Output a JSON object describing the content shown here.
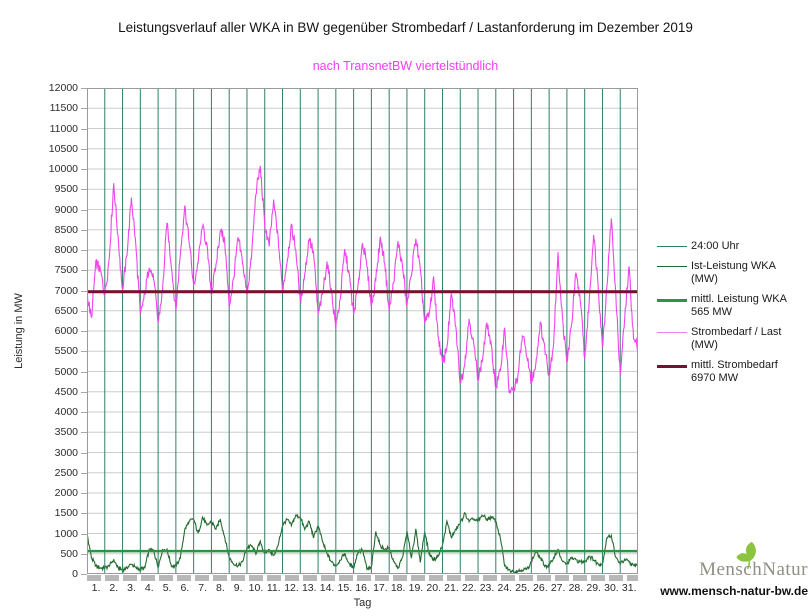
{
  "page": {
    "title": "Leistungsverlauf aller WKA in BW gegenüber  Strombedarf / Lastanforderung im Dezember 2019",
    "subtitle": "nach TransnetBW viertelstündlich"
  },
  "axes": {
    "ylabel": "Leistung in MW",
    "xlabel": "Tag"
  },
  "legend": {
    "items": [
      {
        "label": "24:00 Uhr",
        "label2": "",
        "color": "#2f7f68",
        "weight": 1
      },
      {
        "label": "Ist-Leistung WKA",
        "label2": "(MW)",
        "color": "#226b2e",
        "weight": 1
      },
      {
        "label": "mittl. Leistung WKA",
        "label2": "565 MW",
        "color": "#2f9440",
        "weight": 3
      },
      {
        "label": "Strombedarf / Last",
        "label2": "(MW)",
        "color": "#f07df0",
        "weight": 1
      },
      {
        "label": "mittl. Strombedarf",
        "label2": "6970 MW",
        "color": "#76122e",
        "weight": 3
      }
    ]
  },
  "footer": {
    "brand_left": "Mensch",
    "brand_right": "Natur",
    "url": "www.mensch-natur-bw.de",
    "leaf_color": "#8bc53f"
  },
  "chart_data": {
    "type": "line",
    "title": "Leistungsverlauf aller WKA in BW gegenüber  Strombedarf / Lastanforderung im Dezember 2019",
    "subtitle": "nach TransnetBW viertelstündlich",
    "xlabel": "Tag",
    "ylabel": "Leistung in MW",
    "ylim": [
      0,
      12000
    ],
    "y_step": 500,
    "x_days": 31,
    "grid": "horizontal gray lines every 500 MW; teal vertical line at each day boundary (24:00 Uhr)",
    "legend_position": "right",
    "x_categories": [
      "1.",
      "2.",
      "3.",
      "4.",
      "5.",
      "6.",
      "7.",
      "8.",
      "9.",
      "10.",
      "11.",
      "12.",
      "13.",
      "14.",
      "15.",
      "16.",
      "17.",
      "18.",
      "19.",
      "20.",
      "21.",
      "22.",
      "23.",
      "24.",
      "25.",
      "26.",
      "27.",
      "28.",
      "29.",
      "30.",
      "31."
    ],
    "noise_amplitude": {
      "demand": 160,
      "wka": 55
    },
    "series": [
      {
        "name": "24:00 Uhr",
        "kind": "day-boundary-vlines",
        "color": "#2f7f68",
        "line_width": 1
      },
      {
        "name": "Ist-Leistung WKA (MW)",
        "kind": "line",
        "color": "#226b2e",
        "line_width": 1.1,
        "unit": "MW",
        "samples_per_day": 4,
        "values": [
          1000,
          400,
          200,
          150,
          150,
          200,
          350,
          150,
          100,
          150,
          250,
          150,
          120,
          150,
          600,
          580,
          170,
          600,
          600,
          200,
          200,
          400,
          1100,
          1300,
          1350,
          1000,
          1400,
          1200,
          1300,
          1100,
          1350,
          900,
          400,
          250,
          200,
          300,
          650,
          700,
          500,
          800,
          500,
          600,
          450,
          700,
          1200,
          1350,
          1200,
          1450,
          1400,
          1100,
          1300,
          900,
          1200,
          800,
          500,
          300,
          200,
          350,
          500,
          250,
          150,
          550,
          600,
          120,
          150,
          1050,
          700,
          600,
          650,
          300,
          150,
          400,
          1050,
          400,
          1100,
          300,
          1050,
          500,
          350,
          450,
          700,
          1300,
          900,
          1100,
          1250,
          1500,
          1300,
          1350,
          1300,
          1450,
          1350,
          1400,
          1300,
          900,
          200,
          100,
          60,
          80,
          100,
          120,
          300,
          550,
          400,
          200,
          200,
          400,
          600,
          300,
          250,
          400,
          350,
          300,
          300,
          450,
          350,
          250,
          250,
          900,
          950,
          400,
          250,
          350,
          300,
          200,
          250
        ]
      },
      {
        "name": "mittl. Leistung WKA",
        "kind": "hline",
        "value": 565,
        "unit": "MW",
        "color": "#2f9440",
        "line_width": 2.5,
        "label": "mittl. Leistung WKA 565 MW"
      },
      {
        "name": "Strombedarf / Last (MW)",
        "kind": "line",
        "color": "#ee44ee",
        "line_width": 1.1,
        "unit": "MW",
        "samples_per_day": 4,
        "values": [
          6900,
          6300,
          7700,
          7500,
          6900,
          7800,
          9650,
          8300,
          7000,
          7900,
          9300,
          8100,
          6400,
          6900,
          7600,
          7300,
          6200,
          7000,
          8700,
          7600,
          6500,
          7900,
          9100,
          8200,
          7100,
          7700,
          8600,
          8100,
          6900,
          7600,
          8500,
          8200,
          6600,
          7300,
          8300,
          7700,
          6900,
          7800,
          9400,
          10050,
          8600,
          8100,
          9200,
          8300,
          7000,
          7700,
          8600,
          8000,
          6700,
          7400,
          8300,
          7900,
          6400,
          6900,
          7700,
          7000,
          6100,
          6800,
          8000,
          7400,
          6400,
          7100,
          8200,
          7600,
          6600,
          7300,
          8300,
          7700,
          6500,
          7200,
          8200,
          7600,
          6600,
          7400,
          8300,
          7500,
          6200,
          6400,
          7300,
          5900,
          5200,
          5600,
          6900,
          6100,
          4700,
          5200,
          6300,
          5700,
          4800,
          5300,
          6200,
          5600,
          4600,
          5000,
          6100,
          4500,
          4500,
          4900,
          5900,
          5400,
          4700,
          5200,
          6200,
          5600,
          4900,
          5700,
          7900,
          6300,
          5200,
          6100,
          7400,
          6800,
          5300,
          6700,
          8400,
          7200,
          5600,
          7100,
          8800,
          6900,
          4900,
          6300,
          7600,
          5800,
          5600
        ]
      },
      {
        "name": "mittl. Strombedarf",
        "kind": "hline",
        "value": 6970,
        "unit": "MW",
        "color": "#76122e",
        "line_width": 3,
        "label": "mittl. Strombedarf 6970 MW"
      }
    ]
  }
}
